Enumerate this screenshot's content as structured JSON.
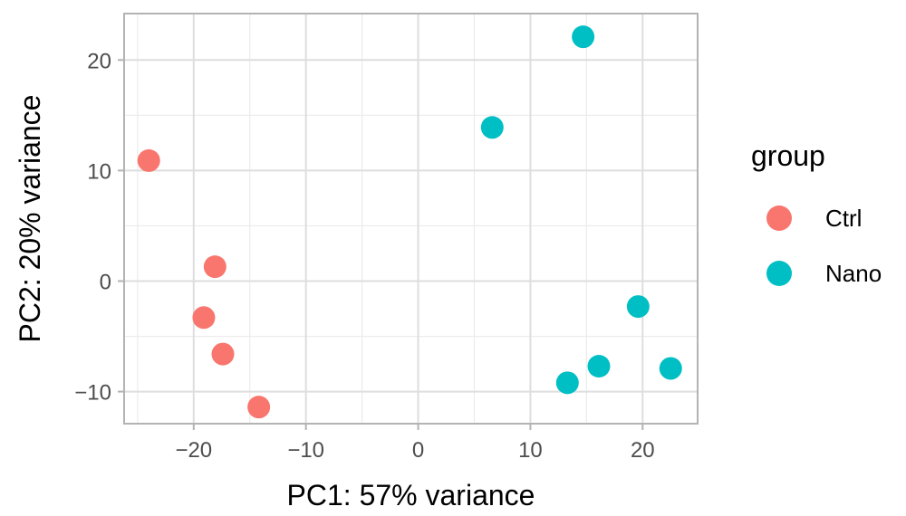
{
  "chart_data": {
    "type": "scatter",
    "title": "",
    "xlabel": "PC1: 57% variance",
    "ylabel": "PC2: 20% variance",
    "xlim": [
      -26.2,
      24.9
    ],
    "ylim": [
      -12.9,
      24.2
    ],
    "xticks": [
      -20,
      -10,
      0,
      10,
      20
    ],
    "yticks": [
      -10,
      0,
      10,
      20
    ],
    "xtick_labels": [
      "−20",
      "−10",
      "0",
      "10",
      "20"
    ],
    "ytick_labels": [
      "−10",
      "0",
      "10",
      "20"
    ],
    "grid": true,
    "legend_position": "right",
    "legend_title": "group",
    "series": [
      {
        "name": "Ctrl",
        "color": "#F8766D",
        "points": [
          {
            "x": -24.0,
            "y": 10.9
          },
          {
            "x": -18.1,
            "y": 1.3
          },
          {
            "x": -19.1,
            "y": -3.3
          },
          {
            "x": -17.4,
            "y": -6.6
          },
          {
            "x": -14.2,
            "y": -11.4
          }
        ]
      },
      {
        "name": "Nano",
        "color": "#00BFC4",
        "points": [
          {
            "x": 14.7,
            "y": 22.1
          },
          {
            "x": 6.6,
            "y": 13.9
          },
          {
            "x": 19.6,
            "y": -2.3
          },
          {
            "x": 16.1,
            "y": -7.7
          },
          {
            "x": 13.3,
            "y": -9.2
          },
          {
            "x": 22.5,
            "y": -7.9
          }
        ]
      }
    ]
  },
  "legend": {
    "title": "group",
    "items": [
      {
        "label": "Ctrl",
        "color": "#F8766D"
      },
      {
        "label": "Nano",
        "color": "#00BFC4"
      }
    ]
  },
  "axes": {
    "x_title": "PC1: 57% variance",
    "y_title": "PC2: 20% variance"
  }
}
